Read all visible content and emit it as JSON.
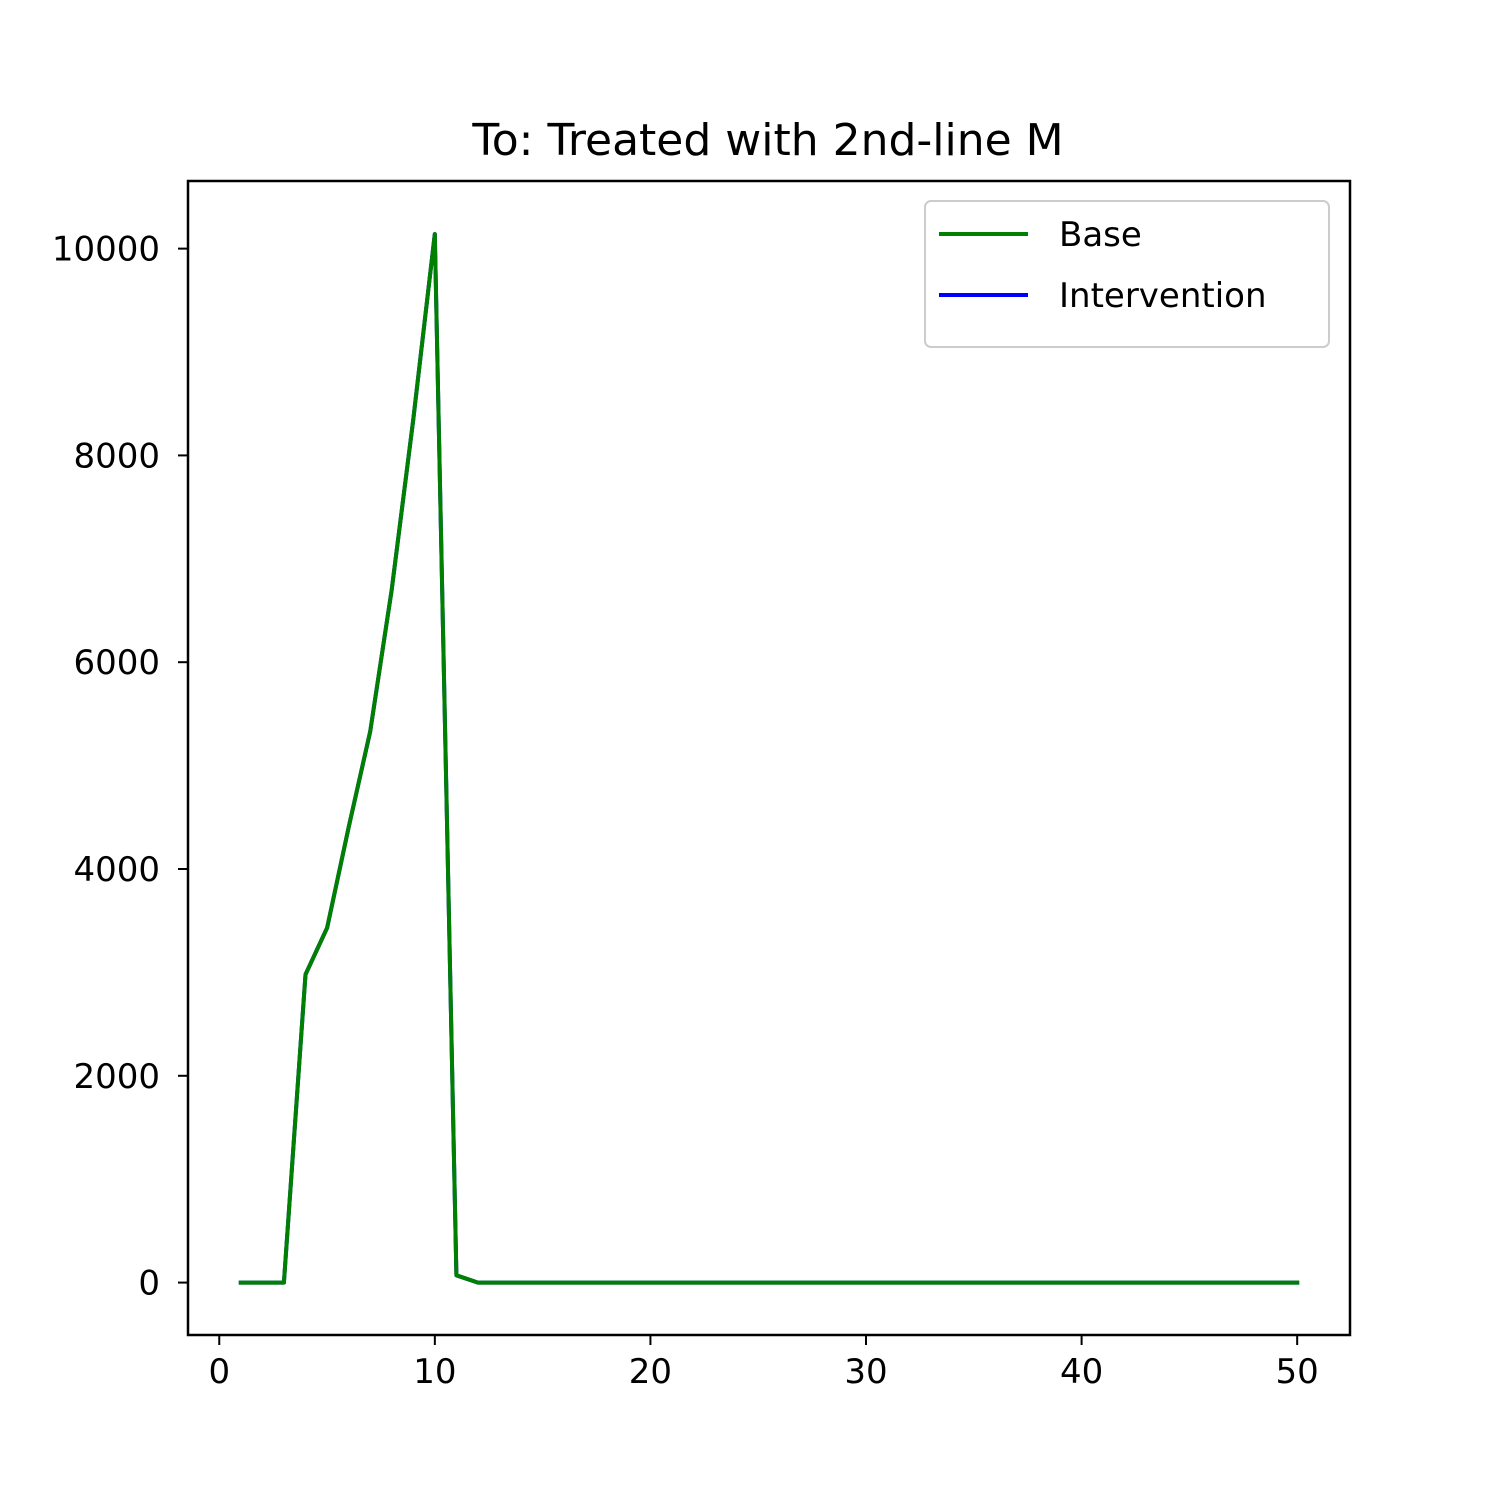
{
  "chart_data": {
    "type": "line",
    "title": "To: Treated with 2nd-line M",
    "xlabel": "",
    "ylabel": "",
    "xlim": [
      -1.45,
      52.45
    ],
    "ylim": [
      -507,
      10654
    ],
    "xticks": [
      0,
      10,
      20,
      30,
      40,
      50
    ],
    "yticks": [
      0,
      2000,
      4000,
      6000,
      8000,
      10000
    ],
    "grid": false,
    "legend_position": "top-right",
    "x": [
      1,
      2,
      3,
      4,
      5,
      6,
      7,
      8,
      9,
      10,
      11,
      12,
      13,
      14,
      15,
      16,
      17,
      18,
      19,
      20,
      21,
      22,
      23,
      24,
      25,
      26,
      27,
      28,
      29,
      30,
      31,
      32,
      33,
      34,
      35,
      36,
      37,
      38,
      39,
      40,
      41,
      42,
      43,
      44,
      45,
      46,
      47,
      48,
      49,
      50
    ],
    "series": [
      {
        "name": "Intervention",
        "color": "#0000ff",
        "values": [
          0,
          0,
          0,
          2980,
          3430,
          4400,
          5330,
          6700,
          8350,
          10140,
          70,
          0,
          0,
          0,
          0,
          0,
          0,
          0,
          0,
          0,
          0,
          0,
          0,
          0,
          0,
          0,
          0,
          0,
          0,
          0,
          0,
          0,
          0,
          0,
          0,
          0,
          0,
          0,
          0,
          0,
          0,
          0,
          0,
          0,
          0,
          0,
          0,
          0,
          0,
          0
        ]
      },
      {
        "name": "Base",
        "color": "#008000",
        "values": [
          0,
          0,
          0,
          2980,
          3430,
          4400,
          5330,
          6700,
          8350,
          10140,
          70,
          0,
          0,
          0,
          0,
          0,
          0,
          0,
          0,
          0,
          0,
          0,
          0,
          0,
          0,
          0,
          0,
          0,
          0,
          0,
          0,
          0,
          0,
          0,
          0,
          0,
          0,
          0,
          0,
          0,
          0,
          0,
          0,
          0,
          0,
          0,
          0,
          0,
          0,
          0
        ]
      }
    ],
    "legend": [
      {
        "label": "Base",
        "color": "#008000"
      },
      {
        "label": "Intervention",
        "color": "#0000ff"
      }
    ]
  }
}
